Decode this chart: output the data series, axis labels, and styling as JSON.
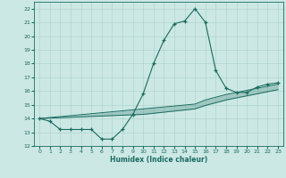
{
  "x": [
    0,
    1,
    2,
    3,
    4,
    5,
    6,
    7,
    8,
    9,
    10,
    11,
    12,
    13,
    14,
    15,
    16,
    17,
    18,
    19,
    20,
    21,
    22,
    23
  ],
  "y_curve": [
    14.0,
    13.8,
    13.2,
    13.2,
    13.2,
    13.2,
    12.5,
    12.5,
    13.2,
    14.3,
    15.8,
    18.0,
    19.7,
    20.9,
    21.1,
    22.0,
    21.0,
    17.5,
    16.2,
    15.9,
    15.9,
    16.3,
    16.5,
    16.6
  ],
  "y_trend_upper": [
    14.0,
    14.07,
    14.14,
    14.21,
    14.28,
    14.35,
    14.42,
    14.49,
    14.56,
    14.63,
    14.7,
    14.77,
    14.84,
    14.91,
    14.98,
    15.05,
    15.35,
    15.55,
    15.75,
    15.9,
    16.05,
    16.2,
    16.35,
    16.5
  ],
  "y_trend_lower": [
    14.0,
    14.03,
    14.06,
    14.09,
    14.12,
    14.15,
    14.18,
    14.21,
    14.24,
    14.27,
    14.3,
    14.38,
    14.46,
    14.54,
    14.62,
    14.7,
    14.95,
    15.15,
    15.35,
    15.5,
    15.65,
    15.8,
    15.95,
    16.1
  ],
  "line_color": "#1a6b60",
  "fill_color": "#1a6b60",
  "background_color": "#cce8e4",
  "grid_color": "#b0d4cf",
  "xlabel": "Humidex (Indice chaleur)",
  "ylim": [
    12,
    22.5
  ],
  "xlim": [
    -0.5,
    23.5
  ],
  "yticks": [
    12,
    13,
    14,
    15,
    16,
    17,
    18,
    19,
    20,
    21,
    22
  ],
  "xticks": [
    0,
    1,
    2,
    3,
    4,
    5,
    6,
    7,
    8,
    9,
    10,
    11,
    12,
    13,
    14,
    15,
    16,
    17,
    18,
    19,
    20,
    21,
    22,
    23
  ]
}
